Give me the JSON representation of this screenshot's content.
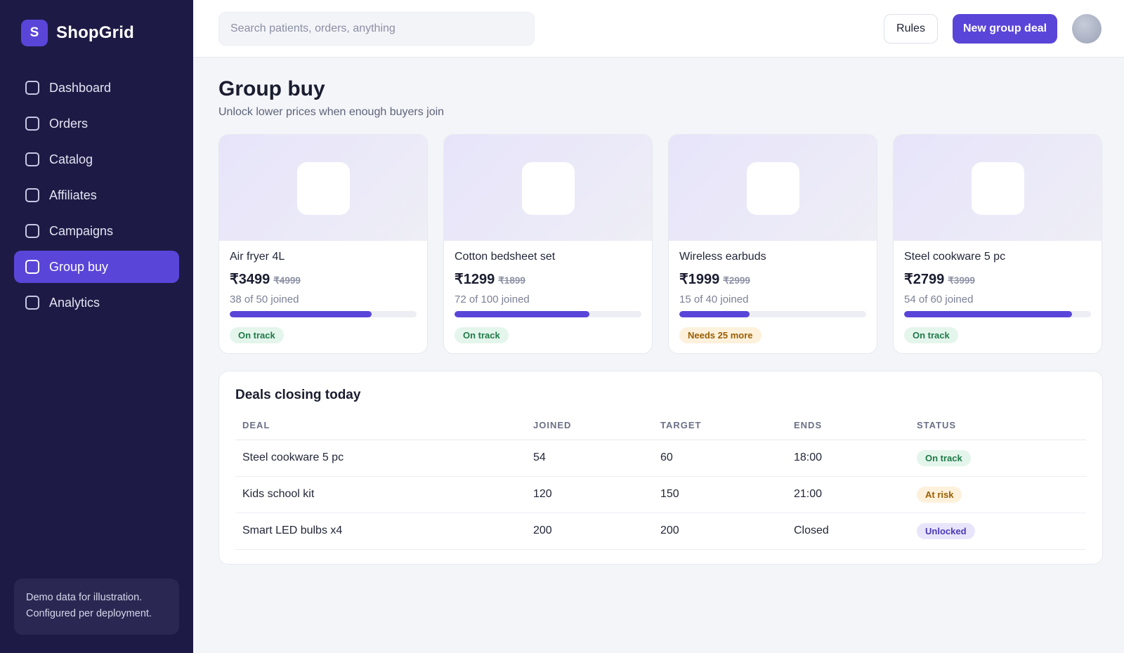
{
  "brand": {
    "logo_letter": "S",
    "name": "ShopGrid"
  },
  "sidebar": {
    "items": [
      {
        "label": "Dashboard",
        "active": false
      },
      {
        "label": "Orders",
        "active": false
      },
      {
        "label": "Catalog",
        "active": false
      },
      {
        "label": "Affiliates",
        "active": false
      },
      {
        "label": "Campaigns",
        "active": false
      },
      {
        "label": "Group buy",
        "active": true
      },
      {
        "label": "Analytics",
        "active": false
      }
    ],
    "note_line1": "Demo data for illustration.",
    "note_line2": "Configured per deployment."
  },
  "header": {
    "search_placeholder": "Search patients, orders, anything",
    "rules_label": "Rules",
    "new_deal_label": "New group deal"
  },
  "page": {
    "title": "Group buy",
    "subtitle": "Unlock lower prices when enough buyers join"
  },
  "cards": [
    {
      "name": "Air fryer 4L",
      "price": "₹3499",
      "old_price": "₹4999",
      "joined": "38 of 50 joined",
      "progress": 0.76,
      "status": "On track",
      "status_tone": "green"
    },
    {
      "name": "Cotton bedsheet set",
      "price": "₹1299",
      "old_price": "₹1899",
      "joined": "72 of 100 joined",
      "progress": 0.72,
      "status": "On track",
      "status_tone": "green"
    },
    {
      "name": "Wireless earbuds",
      "price": "₹1999",
      "old_price": "₹2999",
      "joined": "15 of 40 joined",
      "progress": 0.375,
      "status": "Needs 25 more",
      "status_tone": "amber"
    },
    {
      "name": "Steel cookware 5 pc",
      "price": "₹2799",
      "old_price": "₹3999",
      "joined": "54 of 60 joined",
      "progress": 0.9,
      "status": "On track",
      "status_tone": "green"
    }
  ],
  "deals": {
    "title": "Deals closing today",
    "columns": [
      "DEAL",
      "JOINED",
      "TARGET",
      "ENDS",
      "STATUS"
    ],
    "rows": [
      {
        "deal": "Steel cookware 5 pc",
        "joined": "54",
        "target": "60",
        "ends": "18:00",
        "status": "On track",
        "status_tone": "green"
      },
      {
        "deal": "Kids school kit",
        "joined": "120",
        "target": "150",
        "ends": "21:00",
        "status": "At risk",
        "status_tone": "amber"
      },
      {
        "deal": "Smart LED bulbs x4",
        "joined": "200",
        "target": "200",
        "ends": "Closed",
        "status": "Unlocked",
        "status_tone": "purple"
      }
    ]
  },
  "colors": {
    "accent": "#5a45d9",
    "sidebar_bg": "#1d1b45",
    "page_bg": "#f4f5f9"
  }
}
